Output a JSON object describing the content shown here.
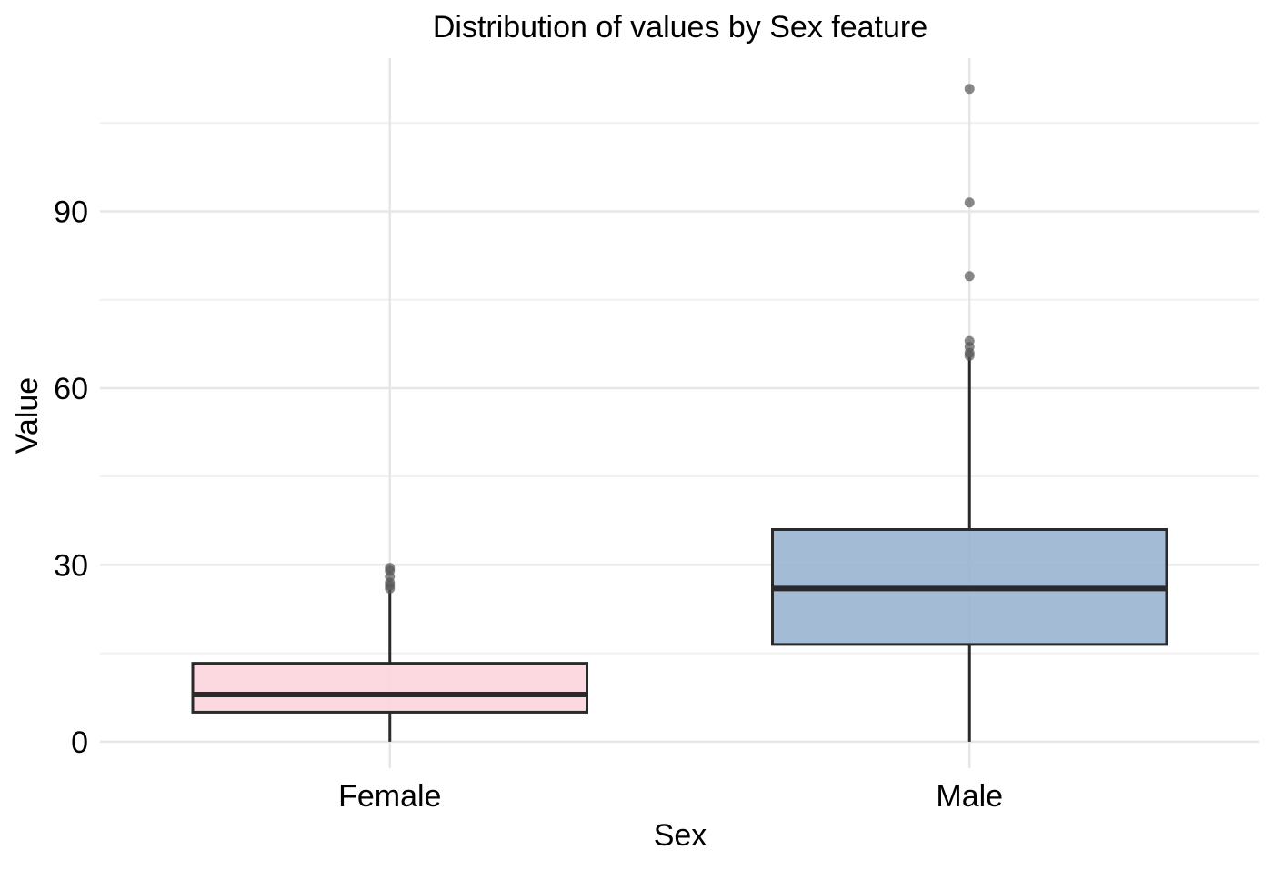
{
  "chart_data": {
    "type": "box",
    "title": "Distribution of values by Sex feature",
    "xlabel": "Sex",
    "ylabel": "Value",
    "categories": [
      "Female",
      "Male"
    ],
    "ylim": [
      -4.5,
      116
    ],
    "yticks": [
      0,
      30,
      60,
      90
    ],
    "grid": true,
    "legend": "none",
    "boxes": [
      {
        "category": "Female",
        "color": "#fcd5de",
        "whisker_low": 0,
        "q1": 5,
        "median": 8,
        "q3": 13.3,
        "whisker_high": 25.8,
        "outliers": [
          26,
          26.5,
          27,
          28,
          29,
          29.5
        ]
      },
      {
        "category": "Male",
        "color": "#9cb5d3",
        "whisker_low": 0,
        "q1": 16.5,
        "median": 26,
        "q3": 36,
        "whisker_high": 65.3,
        "outliers": [
          65.5,
          66,
          67,
          68,
          79,
          91.5,
          110.8
        ]
      }
    ],
    "colors": {
      "grid_major": "#e6e6e6",
      "grid_minor": "#f0f0f0",
      "box_stroke": "#2a2a2a",
      "outlier": "#555555"
    }
  }
}
